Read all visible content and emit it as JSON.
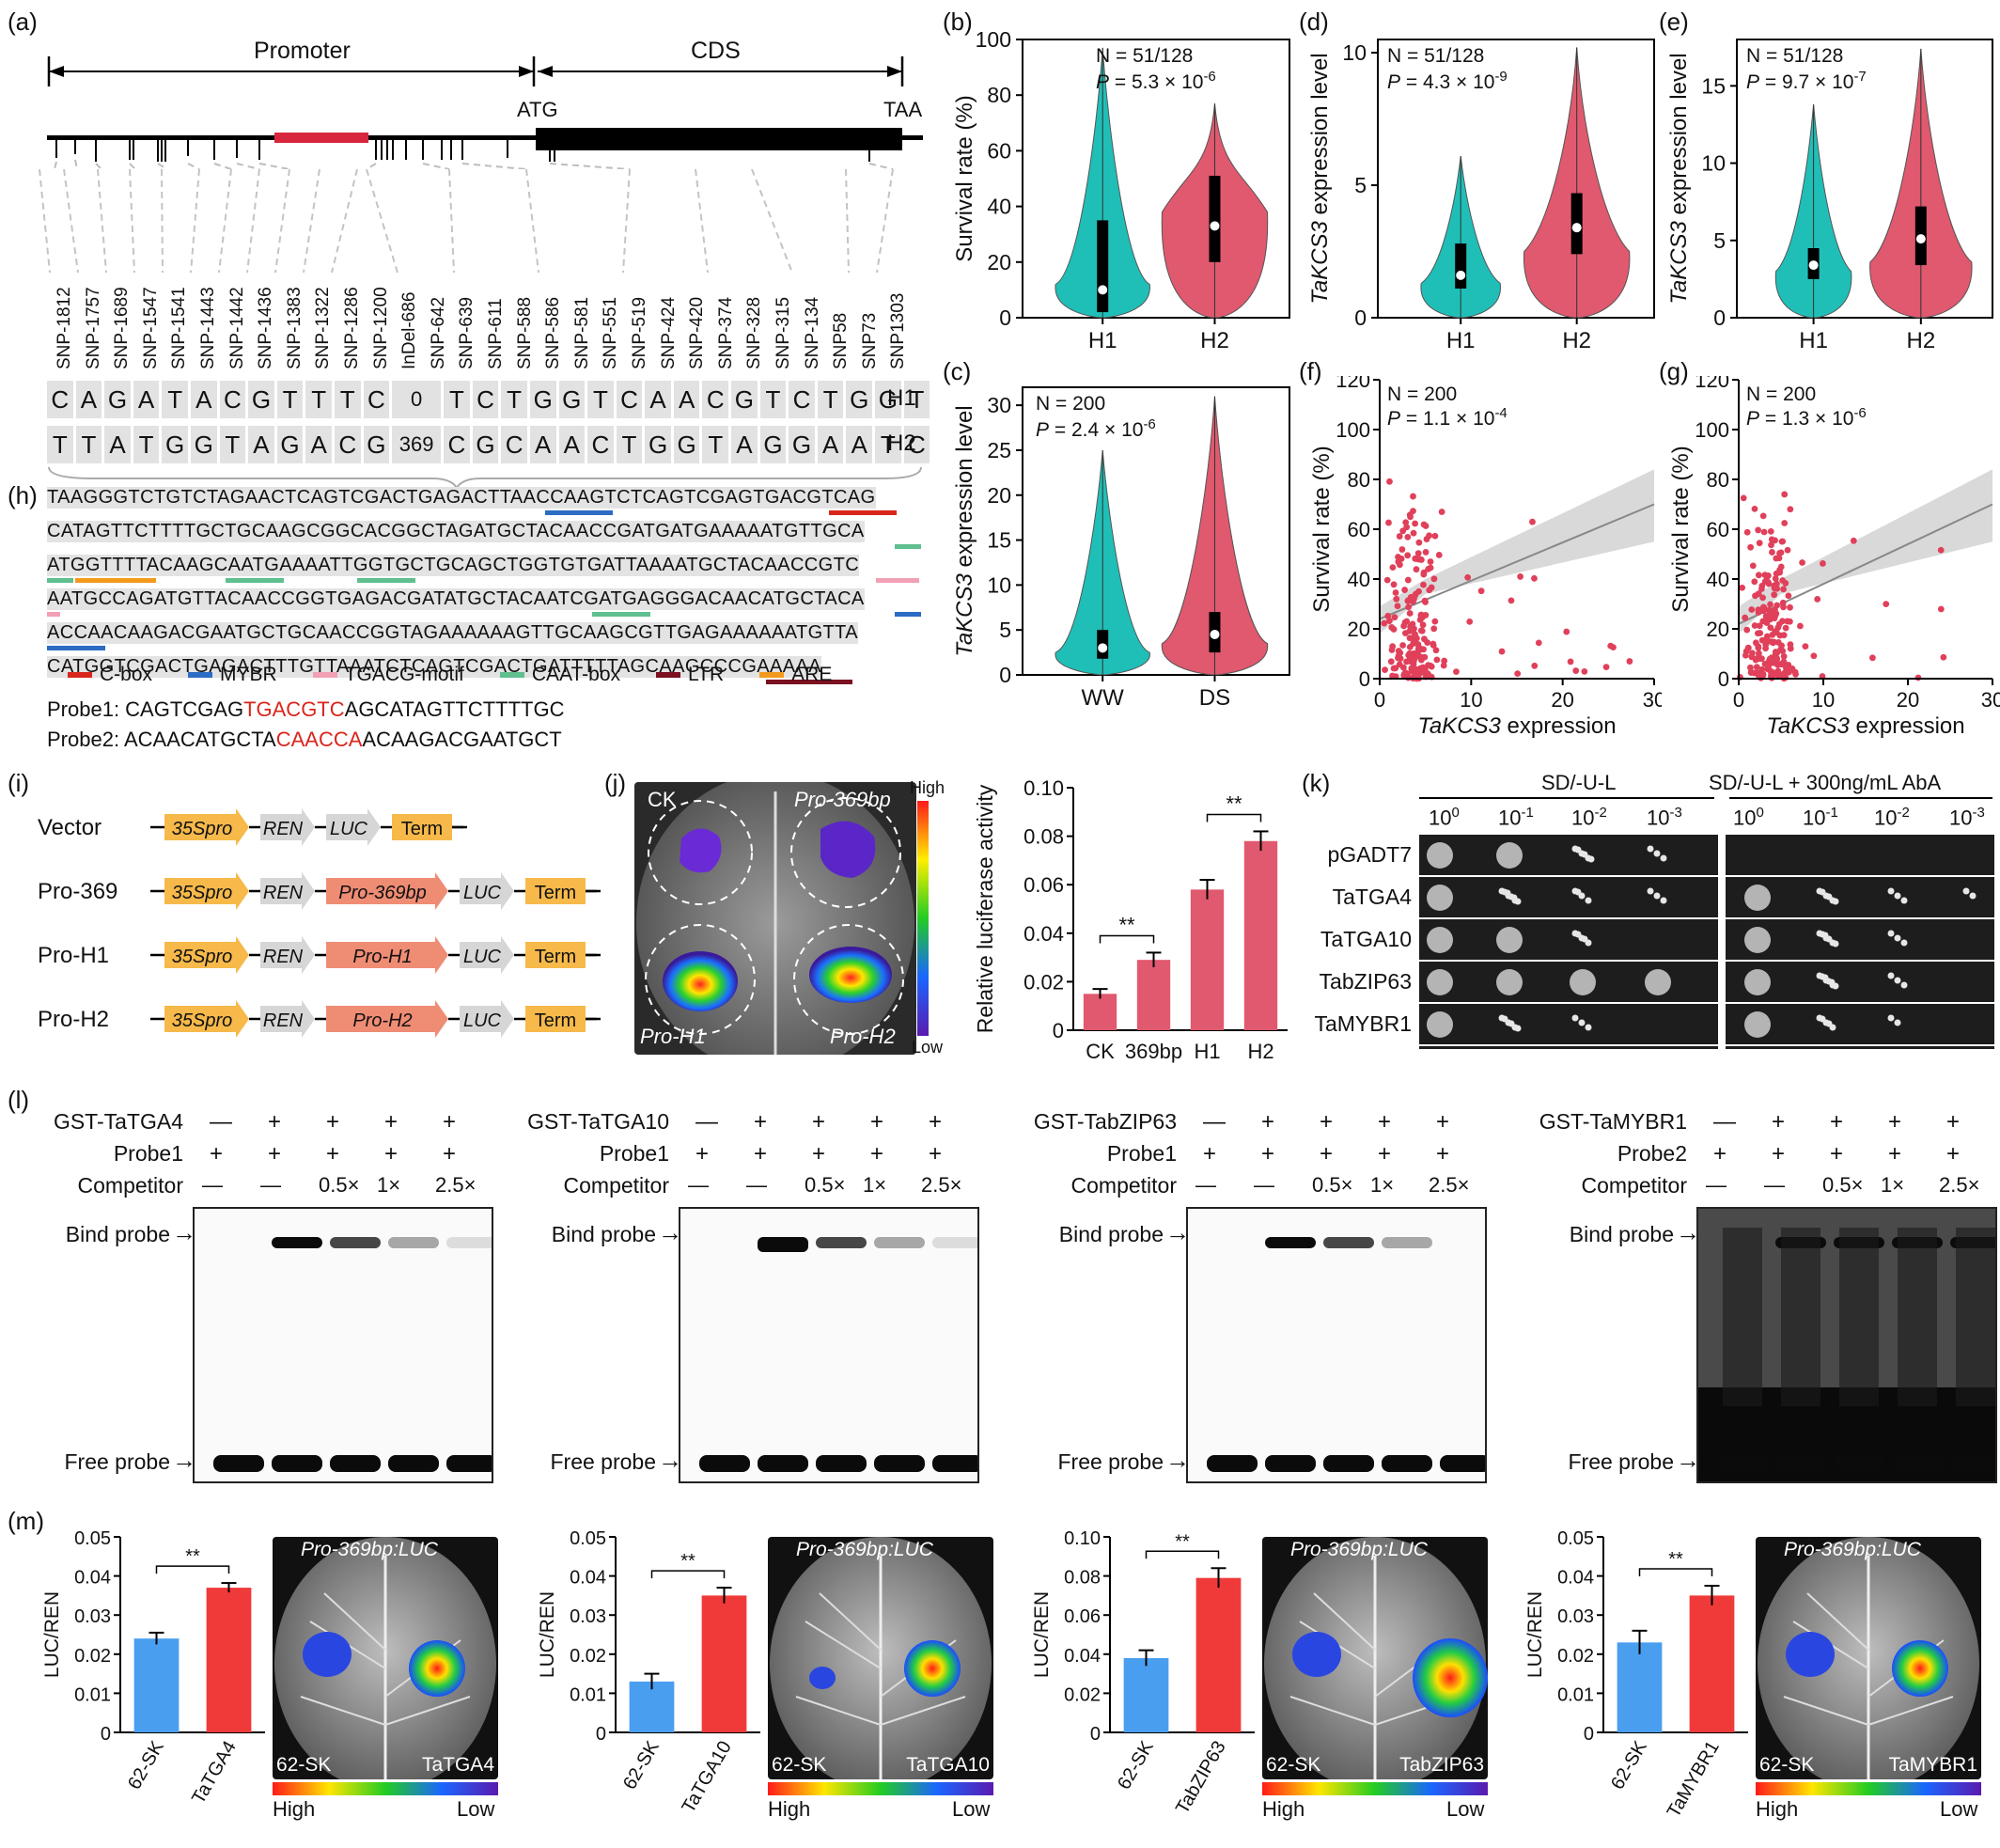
{
  "panel_labels": [
    "(a)",
    "(b)",
    "(c)",
    "(d)",
    "(e)",
    "(f)",
    "(g)",
    "(h)",
    "(i)",
    "(j)",
    "(k)",
    "(l)",
    "(m)"
  ],
  "gene_structure": {
    "promoter_label": "Promoter",
    "cds_label": "CDS",
    "atg": "ATG",
    "taa": "TAA"
  },
  "snps": [
    "SNP-1812",
    "SNP-1757",
    "SNP-1689",
    "SNP-1547",
    "SNP-1541",
    "SNP-1443",
    "SNP-1442",
    "SNP-1436",
    "SNP-1383",
    "SNP-1322",
    "SNP-1286",
    "SNP-1200",
    "InDel-686",
    "SNP-642",
    "SNP-639",
    "SNP-611",
    "SNP-588",
    "SNP-586",
    "SNP-581",
    "SNP-551",
    "SNP-519",
    "SNP-424",
    "SNP-420",
    "SNP-374",
    "SNP-328",
    "SNP-315",
    "SNP-134",
    "SNP58",
    "SNP73",
    "SNP1303"
  ],
  "haplotypes": {
    "H1": {
      "label": "H1",
      "alleles": [
        "C",
        "A",
        "G",
        "A",
        "T",
        "A",
        "C",
        "G",
        "T",
        "T",
        "T",
        "C",
        "0",
        "T",
        "C",
        "T",
        "G",
        "G",
        "T",
        "C",
        "A",
        "A",
        "C",
        "G",
        "T",
        "C",
        "T",
        "G",
        "G",
        "T"
      ]
    },
    "H2": {
      "label": "H2",
      "alleles": [
        "T",
        "T",
        "A",
        "T",
        "G",
        "G",
        "T",
        "A",
        "G",
        "A",
        "C",
        "G",
        "369",
        "C",
        "G",
        "C",
        "A",
        "A",
        "C",
        "T",
        "G",
        "G",
        "T",
        "A",
        "G",
        "G",
        "A",
        "A",
        "T",
        "C"
      ]
    }
  },
  "sequence_lines": [
    "TAAGGGTCTGTCTAGAACTCAGTCGACTGAGACTTAACCAAGTCTCAGTCGAGTGACGTCAG",
    "CATAGTTCTTTTGCTGCAAGCGGCACGGCTAGATGCTACAACCGATGATGAAAAATGTTGCA",
    "ATGGTTTTACAAGCAATGAAAATTGGTGCTGCAGCTGGTGTGATTAAAATGCTACAACCGTC",
    "AATGCCAGATGTTACAACCGGTGAGACGATATGCTACAATCGATGAGGGACAACATGCTACA",
    "ACCAACAAGACGAATGCTGCAACCGGTAGAAAAAAGTTGCAAGCGTTGAGAAAAAATGTTA",
    "CATGGTCGACTGAGACTTTGTTAAATCTCAGTCGACTGATTTTTAGCAAGCCCGAAAAA"
  ],
  "motif_legend": [
    {
      "name": "C-box",
      "color": "#d9261c"
    },
    {
      "name": "MYBR",
      "color": "#2c6cc4"
    },
    {
      "name": "TGACG-motif",
      "color": "#f2a0b4"
    },
    {
      "name": "CAAT-box",
      "color": "#5fbf8f"
    },
    {
      "name": "LTR",
      "color": "#7a1020"
    },
    {
      "name": "ARE",
      "color": "#f39a1c"
    }
  ],
  "probes": {
    "probe1": {
      "label": "Probe1: ",
      "pre": "CAGTCGAG",
      "motif": "TGACGTC",
      "post": "AGCATAGTTCTTTTGC"
    },
    "probe2": {
      "label": "Probe2: ",
      "pre": "ACAACATGCTA",
      "motif": "CAACCA",
      "post": "ACAAGACGAATGCT"
    }
  },
  "colors": {
    "h1": "#1fbfb8",
    "h2": "#e0596e",
    "bar_red": "#e0596e",
    "sk_blue": "#4a9ef0",
    "tf_red": "#f03a3a"
  },
  "chart_data": [
    {
      "id": "b",
      "type": "violin",
      "ylabel": "Survival rate (%)",
      "categories": [
        "H1",
        "H2"
      ],
      "ylim": [
        0,
        100
      ],
      "yticks": [
        0,
        20,
        40,
        60,
        80,
        100
      ],
      "annotation": {
        "n": "N = 51/128",
        "p": "P = 5.3 × 10",
        "p_exp": "-6"
      },
      "medians": [
        10,
        33
      ]
    },
    {
      "id": "c",
      "type": "violin",
      "ylabel": "TaKCS3 expression level",
      "categories": [
        "WW",
        "DS"
      ],
      "ylim": [
        0,
        32
      ],
      "yticks": [
        0,
        5,
        10,
        15,
        20,
        25,
        30
      ],
      "annotation": {
        "n": "N = 200",
        "p": "P = 2.4 × 10",
        "p_exp": "-6"
      },
      "medians": [
        3,
        4.5
      ]
    },
    {
      "id": "d",
      "type": "violin",
      "ylabel": "TaKCS3 expression level",
      "categories": [
        "H1",
        "H2"
      ],
      "ylim": [
        0,
        10.5
      ],
      "yticks": [
        0,
        5,
        10
      ],
      "annotation": {
        "n": "N = 51/128",
        "p": "P = 4.3 × 10",
        "p_exp": "-9"
      },
      "medians": [
        1.6,
        3.4
      ]
    },
    {
      "id": "e",
      "type": "violin",
      "ylabel": "TaKCS3 expression level",
      "categories": [
        "H1",
        "H2"
      ],
      "ylim": [
        0,
        18
      ],
      "yticks": [
        0,
        5,
        10,
        15
      ],
      "annotation": {
        "n": "N = 51/128",
        "p": "P = 9.7 × 10",
        "p_exp": "-7"
      },
      "medians": [
        3.4,
        5.1
      ]
    },
    {
      "id": "f",
      "type": "scatter",
      "xlabel": "TaKCS3 expression",
      "ylabel": "Survival rate (%)",
      "xlim": [
        0,
        30
      ],
      "ylim": [
        0,
        120
      ],
      "xticks": [
        0,
        10,
        20,
        30
      ],
      "yticks": [
        0,
        20,
        40,
        60,
        80,
        100,
        120
      ],
      "annotation": {
        "n": "N = 200",
        "p": "P = 1.1 × 10",
        "p_exp": "-4"
      },
      "fit": [
        [
          0,
          24
        ],
        [
          30,
          70
        ]
      ]
    },
    {
      "id": "g",
      "type": "scatter",
      "xlabel": "TaKCS3 expression",
      "ylabel": "Survival rate (%)",
      "xlim": [
        0,
        30
      ],
      "ylim": [
        0,
        120
      ],
      "xticks": [
        0,
        10,
        20,
        30
      ],
      "yticks": [
        0,
        20,
        40,
        60,
        80,
        100,
        120
      ],
      "annotation": {
        "n": "N = 200",
        "p": "P = 1.3 × 10",
        "p_exp": "-6"
      },
      "fit": [
        [
          0,
          22
        ],
        [
          30,
          70
        ]
      ]
    },
    {
      "id": "j",
      "type": "bar",
      "ylabel": "Relative luciferase activity",
      "categories": [
        "CK",
        "369bp",
        "H1",
        "H2"
      ],
      "values": [
        0.015,
        0.029,
        0.058,
        0.078
      ],
      "errors": [
        0.002,
        0.003,
        0.004,
        0.004
      ],
      "ylim": [
        0,
        0.1
      ],
      "yticks": [
        "0",
        "0.02",
        "0.04",
        "0.06",
        "0.08",
        "0.10"
      ],
      "sig": [
        "**",
        "**"
      ]
    },
    {
      "id": "m1",
      "type": "bar",
      "ylabel": "LUC/REN",
      "categories": [
        "62-SK",
        "TaTGA4"
      ],
      "values": [
        0.024,
        0.037
      ],
      "errors": [
        0.0015,
        0.0012
      ],
      "ylim": [
        0,
        0.05
      ],
      "yticks": [
        "0",
        "0.01",
        "0.02",
        "0.03",
        "0.04",
        "0.05"
      ],
      "sig": "**"
    },
    {
      "id": "m2",
      "type": "bar",
      "ylabel": "LUC/REN",
      "categories": [
        "62-SK",
        "TaTGA10"
      ],
      "values": [
        0.013,
        0.035
      ],
      "errors": [
        0.002,
        0.002
      ],
      "ylim": [
        0,
        0.05
      ],
      "yticks": [
        "0",
        "0.01",
        "0.02",
        "0.03",
        "0.04",
        "0.05"
      ],
      "sig": "**"
    },
    {
      "id": "m3",
      "type": "bar",
      "ylabel": "LUC/REN",
      "categories": [
        "62-SK",
        "TabZIP63"
      ],
      "values": [
        0.038,
        0.079
      ],
      "errors": [
        0.004,
        0.005
      ],
      "ylim": [
        0,
        0.1
      ],
      "yticks": [
        "0",
        "0.02",
        "0.04",
        "0.06",
        "0.08",
        "0.10"
      ],
      "sig": "**"
    },
    {
      "id": "m4",
      "type": "bar",
      "ylabel": "LUC/REN",
      "categories": [
        "62-SK",
        "TaMYBR1"
      ],
      "values": [
        0.023,
        0.035
      ],
      "errors": [
        0.003,
        0.0025
      ],
      "ylim": [
        0,
        0.05
      ],
      "yticks": [
        "0",
        "0.01",
        "0.02",
        "0.03",
        "0.04",
        "0.05"
      ],
      "sig": "**"
    }
  ],
  "constructs": [
    {
      "name": "Vector",
      "parts": [
        "35Spro",
        "REN",
        "LUC",
        "Term"
      ]
    },
    {
      "name": "Pro-369",
      "parts": [
        "35Spro",
        "REN",
        "Pro-369bp",
        "LUC",
        "Term"
      ]
    },
    {
      "name": "Pro-H1",
      "parts": [
        "35Spro",
        "REN",
        "Pro-H1",
        "LUC",
        "Term"
      ]
    },
    {
      "name": "Pro-H2",
      "parts": [
        "35Spro",
        "REN",
        "Pro-H2",
        "LUC",
        "Term"
      ]
    }
  ],
  "leaf_j": {
    "labels": [
      "CK",
      "Pro-369bp",
      "Pro-H1",
      "Pro-H2"
    ],
    "scale_high": "High",
    "scale_low": "Low"
  },
  "yeast": {
    "media": [
      "SD/-U-L",
      "SD/-U-L + 300ng/mL AbA"
    ],
    "dilutions": [
      "10",
      "10",
      "10",
      "10"
    ],
    "dilution_exp": [
      "0",
      "-1",
      "-2",
      "-3"
    ],
    "rows": [
      "pGADT7",
      "TaTGA4",
      "TaTGA10",
      "TabZIP63",
      "TaMYBR1"
    ]
  },
  "emsa": [
    {
      "protein": "GST-TaTGA4",
      "probe": "Probe1",
      "marks_protein": [
        "—",
        "+",
        "+",
        "+",
        "+"
      ],
      "marks_probe": [
        "+",
        "+",
        "+",
        "+",
        "+"
      ],
      "competitor": [
        "—",
        "—",
        "0.5×",
        "1×",
        "2.5×"
      ]
    },
    {
      "protein": "GST-TaTGA10",
      "probe": "Probe1",
      "marks_protein": [
        "—",
        "+",
        "+",
        "+",
        "+"
      ],
      "marks_probe": [
        "+",
        "+",
        "+",
        "+",
        "+"
      ],
      "competitor": [
        "—",
        "—",
        "0.5×",
        "1×",
        "2.5×"
      ]
    },
    {
      "protein": "GST-TabZIP63",
      "probe": "Probe1",
      "marks_protein": [
        "—",
        "+",
        "+",
        "+",
        "+"
      ],
      "marks_probe": [
        "+",
        "+",
        "+",
        "+",
        "+"
      ],
      "competitor": [
        "—",
        "—",
        "0.5×",
        "1×",
        "2.5×"
      ]
    },
    {
      "protein": "GST-TaMYBR1",
      "probe": "Probe2",
      "marks_protein": [
        "—",
        "+",
        "+",
        "+",
        "+"
      ],
      "marks_probe": [
        "+",
        "+",
        "+",
        "+",
        "+"
      ],
      "competitor": [
        "—",
        "—",
        "0.5×",
        "1×",
        "2.5×"
      ]
    }
  ],
  "emsa_labels": {
    "competitor": "Competitor",
    "bind": "Bind probe",
    "free": "Free probe"
  },
  "leaf_m": [
    {
      "title": "Pro-369bp:LUC",
      "left": "62-SK",
      "right": "TaTGA4"
    },
    {
      "title": "Pro-369bp:LUC",
      "left": "62-SK",
      "right": "TaTGA10"
    },
    {
      "title": "Pro-369bp:LUC",
      "left": "62-SK",
      "right": "TabZIP63"
    },
    {
      "title": "Pro-369bp:LUC",
      "left": "62-SK",
      "right": "TaMYBR1"
    }
  ],
  "scale_m": {
    "high": "High",
    "low": "Low"
  }
}
